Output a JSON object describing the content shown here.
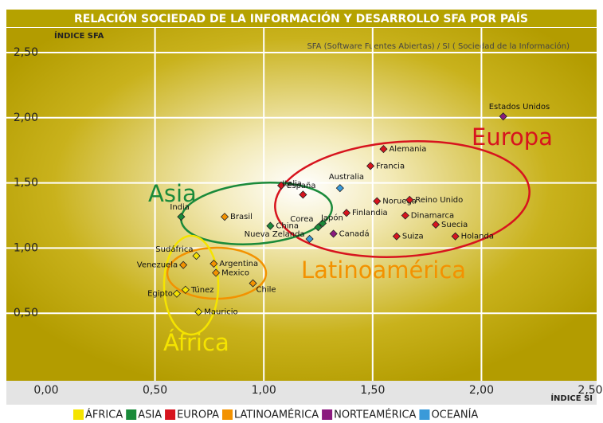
{
  "chart_data": {
    "type": "scatter",
    "title": "RELACIÓN SOCIEDAD DE LA INFORMACIÓN Y DESARROLLO SFA POR PAÍS",
    "subtitle": "SFA (Software Fuentes Abiertas) / SI ( Sociedad de la Información)",
    "y_label": "ÍNDICE SFA",
    "x_label": "ÍNDICE SI",
    "xlim": [
      0,
      2.5
    ],
    "ylim": [
      0,
      2.5
    ],
    "xticks": [
      {
        "value": 0,
        "label": "0,00"
      },
      {
        "value": 0.5,
        "label": "0,50"
      },
      {
        "value": 1,
        "label": "1,00"
      },
      {
        "value": 1.5,
        "label": "1,50"
      },
      {
        "value": 2,
        "label": "2,00"
      },
      {
        "value": 2.5,
        "label": "2,50"
      }
    ],
    "yticks": [
      {
        "value": 0.5,
        "label": "0,50"
      },
      {
        "value": 1,
        "label": "1,00"
      },
      {
        "value": 1.5,
        "label": "1,50"
      },
      {
        "value": 2,
        "label": "2,00"
      },
      {
        "value": 2.5,
        "label": "2,50"
      }
    ],
    "grid": true,
    "series": [
      {
        "name": "ÁFRICA",
        "color": "#f5e400",
        "labels": [
          "Sudáfrica",
          "Túnez",
          "Egipto",
          "Mauricio"
        ],
        "x": [
          0.69,
          0.64,
          0.6,
          0.7
        ],
        "values": [
          0.94,
          0.68,
          0.65,
          0.51
        ]
      },
      {
        "name": "ASIA",
        "color": "#1a8a3a",
        "labels": [
          "India",
          "China",
          "Corea",
          "Japón"
        ],
        "x": [
          0.62,
          1.03,
          1.25,
          1.27
        ],
        "values": [
          1.24,
          1.17,
          1.16,
          1.19
        ]
      },
      {
        "name": "EUROPA",
        "color": "#d7141e",
        "labels": [
          "España",
          "Italia",
          "Alemania",
          "Francia",
          "Noruega",
          "Reino Unido",
          "Finlandia",
          "Dinamarca",
          "Suecia",
          "Holanda",
          "Suiza"
        ],
        "x": [
          1.08,
          1.18,
          1.55,
          1.49,
          1.52,
          1.67,
          1.38,
          1.65,
          1.79,
          1.88,
          1.61
        ],
        "values": [
          1.48,
          1.41,
          1.76,
          1.63,
          1.36,
          1.37,
          1.27,
          1.25,
          1.18,
          1.09,
          1.09
        ]
      },
      {
        "name": "LATINOAMÉRICA",
        "color": "#f39200",
        "labels": [
          "Brasil",
          "Argentina",
          "Venezuela",
          "Mexico",
          "Chile"
        ],
        "x": [
          0.82,
          0.77,
          0.63,
          0.78,
          0.95
        ],
        "values": [
          1.24,
          0.88,
          0.87,
          0.81,
          0.73
        ]
      },
      {
        "name": "NORTEAMÉRICA",
        "color": "#8b1a7e",
        "labels": [
          "Estados Unidos",
          "Canadá"
        ],
        "x": [
          2.1,
          1.32
        ],
        "values": [
          2.01,
          1.11
        ]
      },
      {
        "name": "OCEANÍA",
        "color": "#3a9ad9",
        "labels": [
          "Australia",
          "Nueva Zelanda"
        ],
        "x": [
          1.35,
          1.21
        ],
        "values": [
          1.46,
          1.07
        ]
      }
    ],
    "annotations": [
      {
        "text": "Europa",
        "color": "#d7141e"
      },
      {
        "text": "Asia",
        "color": "#1a8a3a"
      },
      {
        "text": "Latinoamérica",
        "color": "#f39200"
      },
      {
        "text": "África",
        "color": "#f5e400"
      }
    ]
  }
}
